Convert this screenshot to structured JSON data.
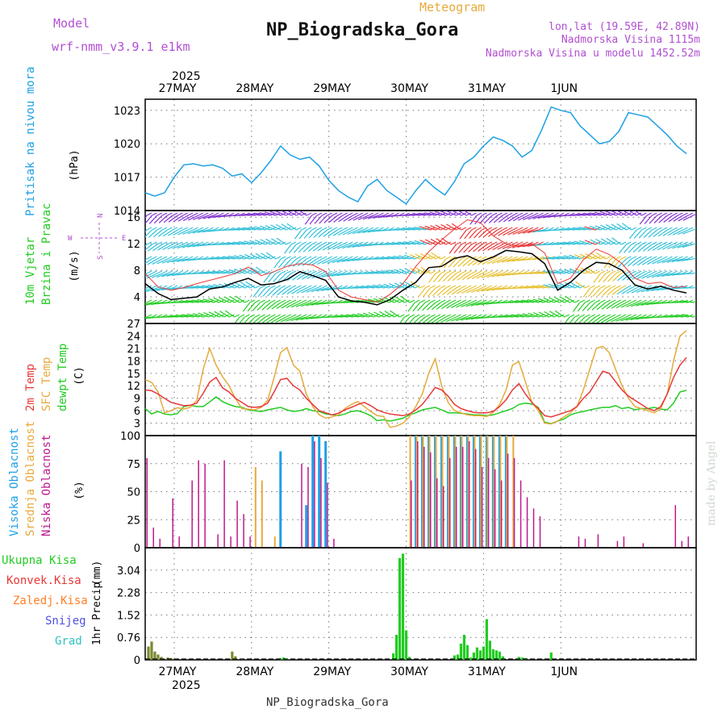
{
  "header": {
    "model_label": "Model",
    "model_name": "wrf-nmm_v3.9.1 e1km",
    "meteogram": "Meteogram",
    "station": "NP_Biogradska_Gora",
    "lonlat": "lon,lat (19.59E, 42.89N)",
    "elevation": "Nadmorska Visina 1115m",
    "model_elevation": "Nadmorska Visina u modelu 1452.52m",
    "footer_station": "NP_Biogradska_Gora",
    "watermark": "made by Angel"
  },
  "colors": {
    "pressure": "#1ea0e6",
    "temp2m": "#e83838",
    "sfc": "#e6aa3c",
    "dew": "#22cc22",
    "high": "#1ea0e6",
    "mid": "#e6aa3c",
    "low": "#c0188c",
    "precip": "#22cc22",
    "conv": "#e83838",
    "frozen": "#ff7f27",
    "snow": "#5050e0",
    "grad": "#30c0c0"
  },
  "time_axis": {
    "year_label": "2025",
    "days": [
      "27MAY",
      "28MAY",
      "29MAY",
      "30MAY",
      "31MAY",
      "1JUN"
    ]
  },
  "chart_data": [
    {
      "type": "line",
      "panel": "pressure",
      "ylabel": "Pritisak na nivou mora",
      "unit": "(hPa)",
      "ylim": [
        1014,
        1024
      ],
      "yticks": [
        "1014",
        "1017",
        "1020",
        "1023"
      ],
      "x_hours": [
        0,
        3,
        6,
        9,
        12,
        15,
        18,
        21,
        24,
        27,
        30,
        33,
        36,
        39,
        42,
        45,
        48,
        51,
        54,
        57,
        60,
        63,
        66,
        69,
        72,
        75,
        78,
        81,
        84,
        87,
        90,
        93,
        96,
        99,
        102,
        105,
        108,
        111,
        114,
        117,
        120,
        123,
        126,
        129,
        132,
        135,
        138,
        141,
        144,
        147,
        150,
        153,
        156,
        159,
        162,
        165,
        168
      ],
      "series": [
        {
          "values": [
            1015.6,
            1015.3,
            1015.6,
            1017.0,
            1018.1,
            1018.2,
            1018.0,
            1018.1,
            1017.8,
            1017.1,
            1017.3,
            1016.5,
            1017.4,
            1018.5,
            1019.8,
            1019.0,
            1018.6,
            1018.8,
            1018.0,
            1016.7,
            1015.8,
            1015.2,
            1014.8,
            1016.2,
            1016.8,
            1015.8,
            1015.2,
            1014.6,
            1015.8,
            1016.8,
            1016.0,
            1015.4,
            1016.6,
            1018.2,
            1018.8,
            1019.8,
            1020.6,
            1020.3,
            1019.8,
            1018.8,
            1019.4,
            1021.2,
            1023.3,
            1023.0,
            1022.8,
            1021.6,
            1020.8,
            1020.0,
            1020.2,
            1021.1,
            1022.8,
            1022.6,
            1022.4,
            1021.6,
            1020.8,
            1019.8,
            1019.1
          ]
        }
      ]
    },
    {
      "type": "line",
      "panel": "wind",
      "ylabel": "10m Vjetar Brzina i Pravac",
      "unit": "(m/s)",
      "ylim": [
        0,
        17
      ],
      "yticks": [
        "4",
        "8",
        "12",
        "16"
      ],
      "compass": [
        "W",
        "E",
        "S",
        "N"
      ],
      "x_hours": [
        0,
        4,
        8,
        12,
        16,
        20,
        24,
        28,
        32,
        36,
        40,
        44,
        48,
        52,
        56,
        60,
        64,
        68,
        72,
        76,
        80,
        84,
        88,
        92,
        96,
        100,
        104,
        108,
        112,
        116,
        120,
        124,
        128,
        132,
        136,
        140,
        144,
        148,
        152,
        156,
        160,
        164,
        168
      ],
      "series": [
        {
          "values": [
            6.0,
            4.5,
            3.6,
            3.8,
            4.0,
            5.2,
            5.5,
            6.2,
            6.8,
            5.8,
            6.0,
            6.6,
            7.8,
            7.2,
            6.5,
            4.0,
            3.4,
            3.2,
            2.8,
            3.6,
            5.0,
            6.2,
            8.4,
            8.6,
            9.8,
            10.2,
            9.3,
            10.0,
            11.0,
            10.8,
            10.5,
            9.0,
            5.0,
            6.2,
            8.0,
            9.2,
            9.0,
            8.0,
            5.8,
            5.2,
            5.6,
            5.0,
            4.6
          ]
        },
        {
          "values": [
            7.5,
            5.5,
            5.0,
            5.4,
            6.0,
            6.5,
            7.0,
            7.5,
            8.5,
            7.2,
            7.8,
            8.6,
            9.0,
            8.8,
            7.8,
            5.0,
            4.0,
            3.6,
            3.2,
            4.4,
            6.0,
            8.6,
            10.8,
            12.6,
            14.2,
            15.6,
            15.2,
            13.2,
            12.0,
            11.6,
            12.0,
            10.6,
            6.0,
            6.8,
            9.6,
            11.2,
            10.4,
            9.0,
            6.8,
            6.0,
            6.2,
            5.4,
            5.6
          ]
        }
      ]
    },
    {
      "type": "line",
      "panel": "temperature",
      "legend": [
        "2m Temp",
        "SFC Temp",
        "dewpt Temp"
      ],
      "unit": "(C)",
      "ylim": [
        0,
        27
      ],
      "yticks": [
        "0",
        "3",
        "6",
        "9",
        "12",
        "15",
        "18",
        "21",
        "24",
        "27"
      ],
      "x_hours": [
        0,
        2,
        4,
        6,
        8,
        10,
        12,
        14,
        16,
        18,
        20,
        22,
        24,
        26,
        28,
        30,
        32,
        34,
        36,
        38,
        40,
        42,
        44,
        46,
        48,
        50,
        52,
        54,
        56,
        58,
        60,
        62,
        64,
        66,
        68,
        70,
        72,
        74,
        76,
        78,
        80,
        82,
        84,
        86,
        88,
        90,
        92,
        94,
        96,
        98,
        100,
        102,
        104,
        106,
        108,
        110,
        112,
        114,
        116,
        118,
        120,
        122,
        124,
        126,
        128,
        130,
        132,
        134,
        136,
        138,
        140,
        142,
        144,
        146,
        148,
        150,
        152,
        154,
        156,
        158,
        160,
        162,
        164,
        166,
        168
      ],
      "series": [
        {
          "name": "2m Temp",
          "values": [
            11,
            10.8,
            10,
            9,
            8,
            7.6,
            7.2,
            7.3,
            7.8,
            10.2,
            12.9,
            14,
            11.5,
            10.5,
            9,
            8,
            7,
            6.8,
            7,
            7.8,
            10.5,
            13.5,
            13.8,
            12,
            11,
            9,
            7.5,
            6,
            5.5,
            5,
            5.4,
            6.2,
            6.8,
            7.5,
            8,
            7.2,
            6.2,
            5.6,
            5.2,
            5,
            4.8,
            5.2,
            6.2,
            7.5,
            9.5,
            11.6,
            11,
            9.5,
            7.5,
            6.5,
            6,
            5.6,
            5.5,
            5.5,
            5.8,
            7,
            8.6,
            11,
            12.5,
            10,
            8,
            6.5,
            4.8,
            4.5,
            5,
            5.5,
            6,
            7,
            9,
            10.5,
            13,
            15.5,
            15,
            13,
            11,
            9.5,
            8.5,
            7.5,
            6.5,
            6,
            7,
            10,
            14,
            17,
            18.8
          ]
        },
        {
          "name": "SFC Temp",
          "values": [
            13.5,
            12.8,
            10.5,
            5.5,
            6,
            6.7,
            6.4,
            6.8,
            8.5,
            16,
            21,
            17,
            14.2,
            12,
            9,
            6.5,
            6.4,
            6.2,
            6.8,
            8.5,
            14,
            20,
            21.2,
            17,
            15.5,
            10,
            7,
            5,
            4.2,
            4.5,
            5,
            6.5,
            7.5,
            8.2,
            7,
            5.8,
            4.8,
            4.6,
            2,
            2.3,
            3,
            4.5,
            7,
            10,
            15,
            18.5,
            12,
            8,
            6,
            5.5,
            5,
            4.8,
            4.8,
            4.6,
            5.6,
            7.5,
            11,
            17,
            17.8,
            13,
            8,
            6,
            3,
            2.8,
            3.5,
            4.5,
            5.5,
            7,
            11,
            16,
            21,
            21.5,
            20,
            16,
            12,
            9,
            7,
            6.5,
            6,
            5.5,
            6.5,
            10,
            18,
            24,
            25.3
          ]
        },
        {
          "name": "dewpt Temp",
          "values": [
            6.5,
            5.2,
            5.8,
            5.2,
            5,
            5.3,
            7,
            7.3,
            7,
            7,
            8.1,
            9.3,
            8.2,
            7.5,
            7,
            6.8,
            6.2,
            6,
            5.8,
            6.2,
            6.5,
            6.8,
            6.2,
            5.8,
            6,
            6.5,
            6,
            5.8,
            5.2,
            5,
            4.8,
            5.2,
            5.8,
            6,
            5.5,
            4.8,
            3.6,
            3.8,
            3.5,
            3.8,
            4.2,
            5,
            5.5,
            6.2,
            6.5,
            6.8,
            6.2,
            5.5,
            5.5,
            5.4,
            5.2,
            5,
            5,
            4.8,
            5,
            5.5,
            6,
            6.5,
            7.5,
            7.8,
            7.6,
            6.8,
            3.2,
            2.9,
            3.5,
            4,
            5,
            5.5,
            5.8,
            6.2,
            6.5,
            6.8,
            6.8,
            7.2,
            6.5,
            6.8,
            6.2,
            6.5,
            6.5,
            6.8,
            6.4,
            6.2,
            7.8,
            10.5,
            10.9
          ]
        }
      ]
    },
    {
      "type": "bar",
      "panel": "clouds",
      "legend": [
        "Visoka Oblacnost",
        "Srednja Oblacnost",
        "Niska Oblacnost"
      ],
      "unit": "(%)",
      "ylim": [
        0,
        100
      ],
      "yticks": [
        "0",
        "25",
        "50",
        "75",
        "100"
      ],
      "x_hours": [
        0,
        2,
        4,
        6,
        8,
        10,
        12,
        14,
        16,
        18,
        20,
        22,
        24,
        26,
        28,
        30,
        32,
        34,
        36,
        38,
        40,
        42,
        44,
        46,
        48,
        50,
        52,
        54,
        56,
        58,
        60,
        62,
        64,
        66,
        68,
        70,
        72,
        74,
        76,
        78,
        80,
        82,
        84,
        86,
        88,
        90,
        92,
        94,
        96,
        98,
        100,
        102,
        104,
        106,
        108,
        110,
        112,
        114,
        116,
        118,
        120,
        122,
        124,
        126,
        128,
        130,
        132,
        134,
        136,
        138,
        140,
        142,
        144,
        146,
        148,
        150,
        152,
        154,
        156,
        158,
        160,
        162,
        164,
        166,
        168
      ],
      "series": [
        {
          "name": "Visoka Oblacnost",
          "values": [
            0,
            0,
            0,
            0,
            0,
            0,
            0,
            0,
            0,
            0,
            0,
            0,
            0,
            0,
            0,
            0,
            0,
            0,
            0,
            0,
            0,
            86,
            0,
            0,
            0,
            38,
            100,
            100,
            95,
            0,
            0,
            0,
            0,
            0,
            0,
            0,
            0,
            0,
            0,
            0,
            0,
            0,
            100,
            100,
            100,
            100,
            100,
            100,
            100,
            100,
            100,
            100,
            100,
            100,
            100,
            100,
            100,
            0,
            0,
            0,
            0,
            0,
            0,
            0,
            0,
            0,
            0,
            0,
            0,
            0,
            0,
            0,
            0,
            0,
            0,
            0,
            0,
            0,
            0,
            0,
            0,
            0,
            0,
            0,
            0
          ]
        },
        {
          "name": "Srednja Oblacnost",
          "values": [
            0,
            0,
            0,
            0,
            0,
            0,
            0,
            0,
            0,
            0,
            0,
            0,
            0,
            0,
            0,
            0,
            0,
            72,
            60,
            0,
            10,
            0,
            0,
            0,
            0,
            0,
            0,
            0,
            0,
            0,
            0,
            0,
            0,
            0,
            0,
            0,
            0,
            0,
            0,
            0,
            0,
            100,
            100,
            100,
            100,
            100,
            100,
            100,
            100,
            100,
            100,
            100,
            100,
            100,
            100,
            100,
            100,
            100,
            0,
            0,
            0,
            0,
            0,
            0,
            0,
            0,
            0,
            0,
            0,
            0,
            0,
            0,
            0,
            0,
            0,
            0,
            0,
            0,
            0,
            0,
            0,
            0,
            0,
            0,
            0
          ]
        },
        {
          "name": "Niska Oblacnost",
          "values": [
            80,
            18,
            8,
            0,
            44,
            10,
            0,
            60,
            78,
            75,
            0,
            12,
            78,
            10,
            42,
            30,
            10,
            0,
            0,
            0,
            0,
            0,
            0,
            0,
            75,
            72,
            95,
            80,
            58,
            8,
            0,
            0,
            0,
            0,
            0,
            0,
            0,
            0,
            0,
            0,
            0,
            60,
            95,
            90,
            85,
            62,
            55,
            80,
            90,
            90,
            95,
            88,
            72,
            80,
            70,
            60,
            84,
            80,
            60,
            45,
            35,
            28,
            0,
            0,
            0,
            0,
            0,
            10,
            8,
            0,
            12,
            0,
            0,
            6,
            10,
            0,
            0,
            4,
            0,
            0,
            0,
            0,
            38,
            6,
            10
          ]
        }
      ]
    },
    {
      "type": "bar",
      "panel": "precipitation",
      "legend": [
        "Ukupna Kisa",
        "Konvek.Kisa",
        "Zaledj.Kisa",
        "Snijeg",
        "Grad"
      ],
      "ylabel": "1hr Precip",
      "unit": "(mm)",
      "ylim": [
        0,
        3.8
      ],
      "yticks": [
        "0",
        "0.76",
        "1.52",
        "2.28",
        "3.04"
      ],
      "x_hours": [
        1,
        2,
        3,
        4,
        5,
        7,
        8,
        27,
        28,
        30,
        42,
        43,
        44,
        77,
        78,
        79,
        80,
        81,
        82,
        96,
        97,
        98,
        99,
        100,
        101,
        102,
        103,
        104,
        105,
        106,
        107,
        108,
        109,
        110,
        111,
        116,
        117,
        118,
        126
      ],
      "series": [
        {
          "name": "Ukupna Kisa",
          "values": [
            0.45,
            0.62,
            0.28,
            0.18,
            0.1,
            0.08,
            0.06,
            0.28,
            0.12,
            0.04,
            0.06,
            0.08,
            0.04,
            0.22,
            0.85,
            3.45,
            3.6,
            1.0,
            0.1,
            0.15,
            0.18,
            0.55,
            0.85,
            0.5,
            0.08,
            0.25,
            0.42,
            0.32,
            0.45,
            1.38,
            0.65,
            0.36,
            0.32,
            0.28,
            0.12,
            0.1,
            0.08,
            0.06,
            0.25
          ]
        },
        {
          "name": "Konvek.Kisa",
          "values": [
            0.45,
            0.62,
            0.28,
            0.18,
            0.1,
            0.08,
            0.06,
            0.28,
            0.12,
            0.04,
            0,
            0,
            0,
            0,
            0,
            0,
            0,
            0,
            0,
            0,
            0,
            0,
            0,
            0,
            0,
            0,
            0,
            0,
            0,
            0,
            0,
            0,
            0,
            0,
            0,
            0,
            0,
            0,
            0
          ]
        }
      ]
    }
  ]
}
